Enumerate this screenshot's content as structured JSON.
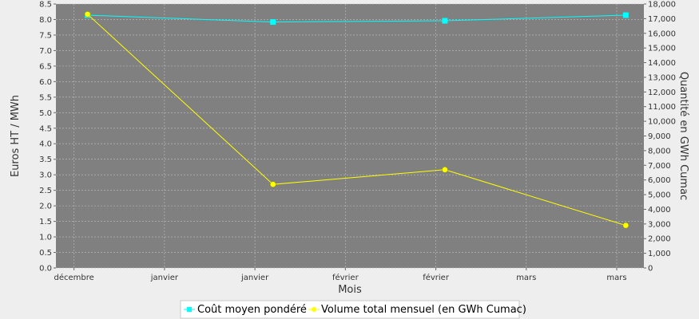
{
  "chart_data": {
    "type": "line",
    "xlabel": "Mois",
    "ylabel_left": "Euros HT / MWh",
    "ylabel_right": "Quantité en GWh Cumac",
    "x_tick_labels": [
      "décembre",
      "janvier",
      "janvier",
      "février",
      "février",
      "mars",
      "mars"
    ],
    "y_left_lim": [
      0,
      8.5
    ],
    "y_left_ticks": [
      "0.0",
      "0.5",
      "1.0",
      "1.5",
      "2.0",
      "2.5",
      "3.0",
      "3.5",
      "4.0",
      "4.5",
      "5.0",
      "5.5",
      "6.0",
      "6.5",
      "7.0",
      "7.5",
      "8.0",
      "8.5"
    ],
    "y_right_lim": [
      0,
      18000
    ],
    "y_right_ticks": [
      "0",
      "1,000",
      "2,000",
      "3,000",
      "4,000",
      "5,000",
      "6,000",
      "7,000",
      "8,000",
      "9,000",
      "10,000",
      "11,000",
      "12,000",
      "13,000",
      "14,000",
      "15,000",
      "16,000",
      "17,000",
      "18,000"
    ],
    "grid": true,
    "legend_position": "bottom",
    "series": [
      {
        "name": "Coût moyen pondéré",
        "axis": "left",
        "color": "#00ffff",
        "marker": "square",
        "x": [
          0.15,
          2.2,
          4.1,
          6.1
        ],
        "values": [
          8.14,
          7.92,
          7.96,
          8.14
        ]
      },
      {
        "name": "Volume total mensuel (en GWh Cumac)",
        "axis": "right",
        "color": "#ffff00",
        "marker": "circle",
        "x": [
          0.15,
          2.2,
          4.1,
          6.1
        ],
        "values": [
          17300,
          5700,
          6700,
          2900
        ]
      }
    ]
  }
}
